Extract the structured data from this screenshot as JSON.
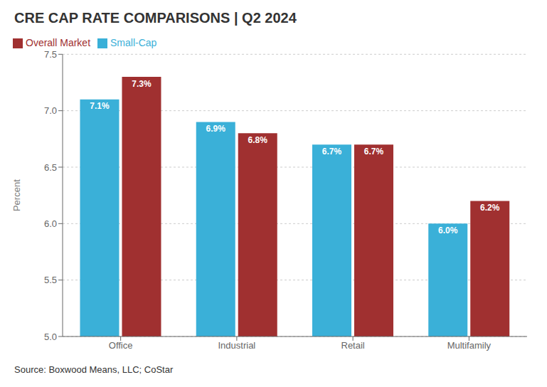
{
  "chart_data": {
    "type": "bar",
    "title": "CRE CAP RATE COMPARISONS | Q2 2024",
    "categories": [
      "Office",
      "Industrial",
      "Retail",
      "Multifamily"
    ],
    "series": [
      {
        "name": "Small-Cap",
        "color": "#3ab0d8",
        "values": [
          7.1,
          6.9,
          6.7,
          6.0
        ],
        "value_labels": [
          "7.1%",
          "6.9%",
          "6.7%",
          "6.0%"
        ]
      },
      {
        "name": "Overall Market",
        "color": "#a03030",
        "values": [
          7.3,
          6.8,
          6.7,
          6.2
        ],
        "value_labels": [
          "7.3%",
          "6.8%",
          "6.7%",
          "6.2%"
        ]
      }
    ],
    "ylabel": "Percent",
    "ylim": [
      5.0,
      7.5
    ],
    "yticks": [
      {
        "value": 5.0,
        "label": "5.0"
      },
      5.5,
      {
        "value": 6.0,
        "label": "6.0"
      },
      6.5,
      {
        "value": 7.0,
        "label": "7.0"
      },
      7.5
    ],
    "grid": true,
    "legend": "upper left",
    "data_labels": true,
    "annotations": [
      "Source: Boxwood Means, LLC; CoStar"
    ]
  }
}
